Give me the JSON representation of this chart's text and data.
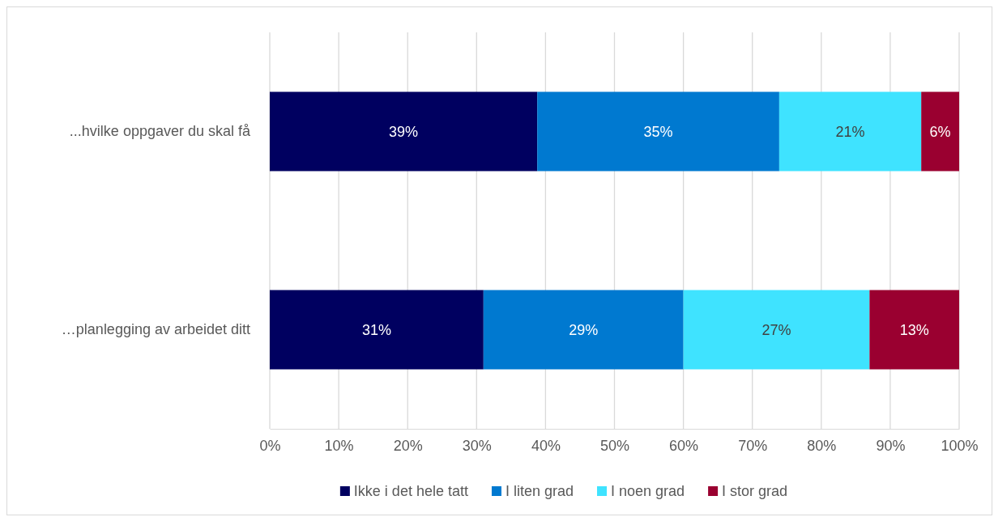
{
  "chart_data": {
    "type": "bar",
    "orientation": "horizontal",
    "stacked": true,
    "categories": [
      "...hvilke oppgaver du skal få",
      "…planlegging av arbeidet ditt"
    ],
    "series": [
      {
        "name": "Ikke i det hele tatt",
        "color": "#000060",
        "values": [
          38.8,
          31
        ],
        "value_labels": [
          "39%",
          "31%"
        ]
      },
      {
        "name": "I liten grad",
        "color": "#0079d0",
        "values": [
          35.1,
          29
        ],
        "value_labels": [
          "35%",
          "29%"
        ]
      },
      {
        "name": "I noen grad",
        "color": "#3fe3ff",
        "values": [
          20.6,
          27
        ],
        "value_labels": [
          "21%",
          "27%"
        ]
      },
      {
        "name": "I stor grad",
        "color": "#9a0030",
        "values": [
          5.5,
          13
        ],
        "value_labels": [
          "6%",
          "13%"
        ]
      }
    ],
    "xlim": [
      0,
      100
    ],
    "xticks": [
      {
        "value": 0,
        "label": "0%"
      },
      {
        "value": 10,
        "label": "10%"
      },
      {
        "value": 20,
        "label": "20%"
      },
      {
        "value": 30,
        "label": "30%"
      },
      {
        "value": 40,
        "label": "40%"
      },
      {
        "value": 50,
        "label": "50%"
      },
      {
        "value": 60,
        "label": "60%"
      },
      {
        "value": 70,
        "label": "70%"
      },
      {
        "value": 80,
        "label": "80%"
      },
      {
        "value": 90,
        "label": "90%"
      },
      {
        "value": 100,
        "label": "100%"
      }
    ],
    "grid": "x",
    "legend": "bottom"
  }
}
